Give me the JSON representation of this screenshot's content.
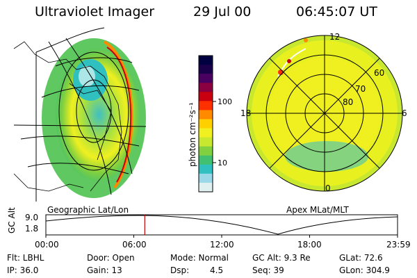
{
  "header": {
    "instrument": "Ultraviolet Imager",
    "date": "29 Jul 00",
    "time": "06:45:07 UT"
  },
  "left_panel": {
    "caption": "Geographic Lat/Lon",
    "colors": {
      "bg": "#ffffff",
      "grid": "#000000"
    }
  },
  "colorbar": {
    "unit_label": "photon cm⁻²s⁻¹",
    "tick_labels": [
      "100",
      "10"
    ],
    "colors": [
      "#000040",
      "#1a004a",
      "#4a0060",
      "#8a0040",
      "#c80010",
      "#ff3000",
      "#ff8a00",
      "#ffd000",
      "#f0f020",
      "#c8e830",
      "#80d040",
      "#40c070",
      "#30c0c0",
      "#9ad8e8",
      "#e0f0f0"
    ]
  },
  "right_panel": {
    "caption": "Apex MLat/MLT",
    "mlt_labels": {
      "top": "12",
      "left": "18",
      "right": "6",
      "bottom": "0"
    },
    "lat_labels": [
      "60",
      "70",
      "80"
    ]
  },
  "timeline": {
    "axis_label": "GC Alt",
    "y_ticks": [
      "9.0",
      "1.8"
    ],
    "x_ticks": [
      "00:00",
      "06:00",
      "12:00",
      "18:00",
      "23:59"
    ],
    "marker_time_hours": 6.75,
    "marker_color": "#c00000"
  },
  "footer": {
    "flt": "Flt: LBHL",
    "ip": "IP: 36.0",
    "door": "Door: Open",
    "gain": "Gain: 13",
    "mode": "Mode: Normal",
    "dsp_label": "Dsp:",
    "dsp_value": "4.5",
    "gc_alt": "GC Alt: 9.3 Re",
    "seq": "Seq: 39",
    "glat": "GLat:  72.6",
    "glon": "GLon: 304.9"
  }
}
